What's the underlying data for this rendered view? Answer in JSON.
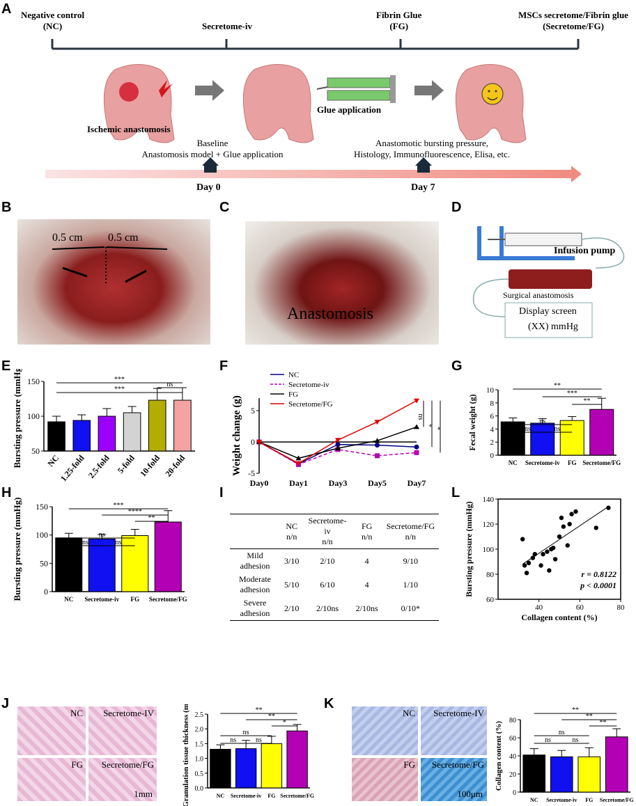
{
  "panels": {
    "A": "A",
    "B": "B",
    "C": "C",
    "D": "D",
    "E": "E",
    "F": "F",
    "G": "G",
    "H": "H",
    "I": "I",
    "J": "J",
    "K": "K",
    "L": "L"
  },
  "panelA": {
    "groups": [
      "Negative control\n(NC)",
      "Secretome-iv",
      "Fibrin Glue\n(FG)",
      "MSCs secretome/Fibrin glue\n(Secretome/FG)"
    ],
    "group_lines": [
      [
        "Negative control",
        "(NC)"
      ],
      [
        "Secretome-iv"
      ],
      [
        "Fibrin Glue",
        "(FG)"
      ],
      [
        "MSCs secretome/Fibrin glue",
        "(Secretome/FG)"
      ]
    ],
    "ischemic": "Ischemic anastomosis",
    "glue": "Glue application",
    "baseline": "Baseline",
    "baseline2": "Anastomosis model + Glue application",
    "day7_text1": "Anastomotic bursting pressure,",
    "day7_text2": "Histology, Immunofluorescence, Elisa, etc.",
    "day0": "Day 0",
    "day7": "Day 7"
  },
  "panelB": {
    "scale1": "0.5 cm",
    "scale2": "0.5 cm"
  },
  "panelC": {
    "label": "Anastomosis"
  },
  "panelD": {
    "pump": "Infusion pump",
    "surgical": "Surgical anastomosis",
    "screen": "Display screen",
    "reading": "(XX) mmHg"
  },
  "colors": {
    "black": "#000000",
    "blue": "#1010f0",
    "yellow": "#ffff00",
    "purple": "#b400b4",
    "lightgray": "#d3d3d3",
    "olive": "#b3ad00",
    "pink": "#f4a3a3",
    "violet": "#9b00ff",
    "red": "#e00000",
    "navy": "#000080"
  },
  "chart_data": [
    {
      "id": "E",
      "type": "bar",
      "ylabel": "Bursting pressure (mmHg)",
      "ylim": [
        50,
        150
      ],
      "yticks": [
        50,
        100,
        150
      ],
      "categories": [
        "NC",
        "1.25-fold",
        "2.5-fold",
        "5-fold",
        "10-fold",
        "20-fold"
      ],
      "values": [
        92,
        94,
        100,
        105,
        123,
        123
      ],
      "errors": [
        8,
        8,
        11,
        9,
        17,
        18
      ],
      "colors": [
        "#000000",
        "#1010f0",
        "#9b00ff",
        "#d3d3d3",
        "#b3ad00",
        "#f4a3a3"
      ],
      "sig": [
        "***",
        "***",
        "ns"
      ]
    },
    {
      "id": "F",
      "type": "line",
      "ylabel": "Weight change (g)",
      "ylim": [
        -5,
        7
      ],
      "yticks": [
        -5,
        0,
        5
      ],
      "categories": [
        "Day0",
        "Day1",
        "Day3",
        "Day5",
        "Day7"
      ],
      "series": [
        {
          "name": "NC",
          "values": [
            0,
            -3.5,
            -0.4,
            -0.5,
            -0.8
          ],
          "color": "#000080",
          "marker": "circle",
          "dash": false
        },
        {
          "name": "Secretome-iv",
          "values": [
            0,
            -3.6,
            -1.2,
            -2.2,
            -1.7
          ],
          "color": "#b400b4",
          "marker": "square",
          "dash": true
        },
        {
          "name": "FG",
          "values": [
            0,
            -2.6,
            -1.0,
            0.2,
            2.4
          ],
          "color": "#000000",
          "marker": "triangle",
          "dash": false
        },
        {
          "name": "Secretome/FG",
          "values": [
            0,
            -3.4,
            0.3,
            3.2,
            6.6
          ],
          "color": "#e00000",
          "marker": "triangle-down",
          "dash": false
        }
      ],
      "sig": [
        "ns",
        "*",
        "*"
      ]
    },
    {
      "id": "G",
      "type": "bar",
      "ylabel": "Fecal weight (g)",
      "ylim": [
        0,
        10
      ],
      "yticks": [
        0,
        2,
        4,
        6,
        8,
        10
      ],
      "categories": [
        "NC",
        "Secretome-iv",
        "FG",
        "Secretome/FG"
      ],
      "values": [
        5.1,
        4.9,
        5.3,
        7.0
      ],
      "errors": [
        0.6,
        0.7,
        0.6,
        1.7
      ],
      "colors": [
        "#000000",
        "#1010f0",
        "#ffff00",
        "#b400b4"
      ],
      "sig": [
        "**",
        "***",
        "**",
        "ns",
        "ns",
        "ns"
      ]
    },
    {
      "id": "H",
      "type": "bar",
      "ylabel": "Bursting pressure (mmHg)",
      "ylim": [
        0,
        150
      ],
      "yticks": [
        0,
        50,
        100,
        150
      ],
      "categories": [
        "NC",
        "Secretome-iv",
        "FG",
        "Secretome/FG"
      ],
      "values": [
        95,
        93,
        99,
        123
      ],
      "errors": [
        8,
        8,
        11,
        20
      ],
      "colors": [
        "#000000",
        "#1010f0",
        "#ffff00",
        "#b400b4"
      ],
      "sig": [
        "***",
        "****",
        "**",
        "ns",
        "ns",
        "ns"
      ]
    },
    {
      "id": "J",
      "type": "bar",
      "ylabel": "Granulation tissue thickness (mm)",
      "ylim": [
        0,
        2.5
      ],
      "yticks": [
        "0.0",
        "0.5",
        "1.0",
        "1.5",
        "2.0",
        "2.5"
      ],
      "categories": [
        "NC",
        "Secretome-iv",
        "FG",
        "Secretome/FG"
      ],
      "values": [
        1.31,
        1.33,
        1.5,
        1.93
      ],
      "errors": [
        0.15,
        0.28,
        0.25,
        0.22
      ],
      "colors": [
        "#000000",
        "#1010f0",
        "#ffff00",
        "#b400b4"
      ],
      "sig": [
        "**",
        "**",
        "*",
        "ns",
        "ns",
        "ns"
      ]
    },
    {
      "id": "K",
      "type": "bar",
      "ylabel": "Collagen content (%)",
      "ylim": [
        0,
        80
      ],
      "yticks": [
        0,
        20,
        40,
        60,
        80
      ],
      "categories": [
        "NC",
        "Secretome-iv",
        "FG",
        "Secretome/FG"
      ],
      "values": [
        41,
        39,
        39,
        61
      ],
      "errors": [
        7,
        7,
        10,
        9
      ],
      "colors": [
        "#000000",
        "#1010f0",
        "#ffff00",
        "#b400b4"
      ],
      "sig": [
        "**",
        "**",
        "**",
        "ns",
        "ns",
        "ns"
      ]
    },
    {
      "id": "L",
      "type": "scatter",
      "xlabel": "Collagen content (%)",
      "ylabel": "Bursting pressure (mmHg)",
      "xlim": [
        20,
        80
      ],
      "ylim": [
        60,
        140
      ],
      "xticks": [
        40,
        60,
        80
      ],
      "yticks": [
        60,
        80,
        100,
        120,
        140
      ],
      "x": [
        32,
        33,
        34,
        35,
        37,
        38,
        41,
        42,
        44,
        45,
        46,
        47,
        48,
        50,
        51,
        52,
        54,
        55,
        56,
        58,
        68,
        74
      ],
      "y": [
        108,
        87,
        81,
        89,
        93,
        96,
        87,
        96,
        98,
        83,
        100,
        101,
        92,
        110,
        125,
        118,
        103,
        120,
        128,
        130,
        117,
        133
      ],
      "fit": {
        "x0": 32,
        "y0": 88,
        "x1": 74,
        "y1": 134
      },
      "r": "r = 0.8122",
      "p": "p < 0.0001"
    }
  ],
  "tableI": {
    "headers": [
      "",
      "NC",
      "Secretome-iv",
      "FG",
      "Secretome/FG"
    ],
    "subheaders": [
      "",
      "n/n",
      "n/n",
      "n/n",
      "n/n"
    ],
    "rows": [
      [
        "Mild adhesion",
        "3/10",
        "2/10",
        "4",
        "9/10"
      ],
      [
        "Moderate adhesion",
        "5/10",
        "6/10",
        "4",
        "1/10"
      ],
      [
        "Severe adhesion",
        "2/10",
        "2/10ns",
        "2/10ns",
        "0/10*"
      ]
    ]
  },
  "panelJ": {
    "labels": [
      "NC",
      "Secretome-IV",
      "FG",
      "Secretome/FG"
    ],
    "scale": "1mm"
  },
  "panelK": {
    "labels": [
      "NC",
      "Secretome-IV",
      "FG",
      "Secretome/FG"
    ],
    "scale": "100μm"
  }
}
